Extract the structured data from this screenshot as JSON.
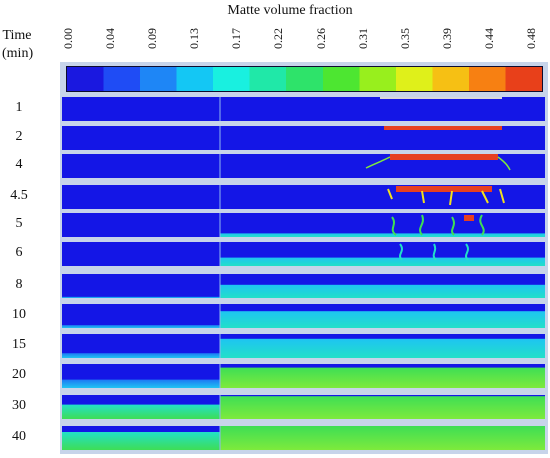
{
  "title": "Matte volume fraction",
  "time_axis": {
    "label_line1": "Time",
    "label_line2": "(min)"
  },
  "colorbar": {
    "ticks": [
      "0.00",
      "0.04",
      "0.09",
      "0.13",
      "0.17",
      "0.22",
      "0.26",
      "0.31",
      "0.35",
      "0.39",
      "0.44",
      "0.48"
    ],
    "colors": [
      "#1a18e0",
      "#1f4cf5",
      "#1e86f6",
      "#14c7f4",
      "#19f0e0",
      "#20e8a8",
      "#2ee36a",
      "#4de631",
      "#98ef1d",
      "#dff01a",
      "#f6c014",
      "#f78012",
      "#e8401a"
    ]
  },
  "rows": [
    {
      "time": "1"
    },
    {
      "time": "2"
    },
    {
      "time": "4"
    },
    {
      "time": "4.5"
    },
    {
      "time": "5"
    },
    {
      "time": "6"
    },
    {
      "time": "8"
    },
    {
      "time": "10"
    },
    {
      "time": "15"
    },
    {
      "time": "20"
    },
    {
      "time": "30"
    },
    {
      "time": "40"
    }
  ]
}
